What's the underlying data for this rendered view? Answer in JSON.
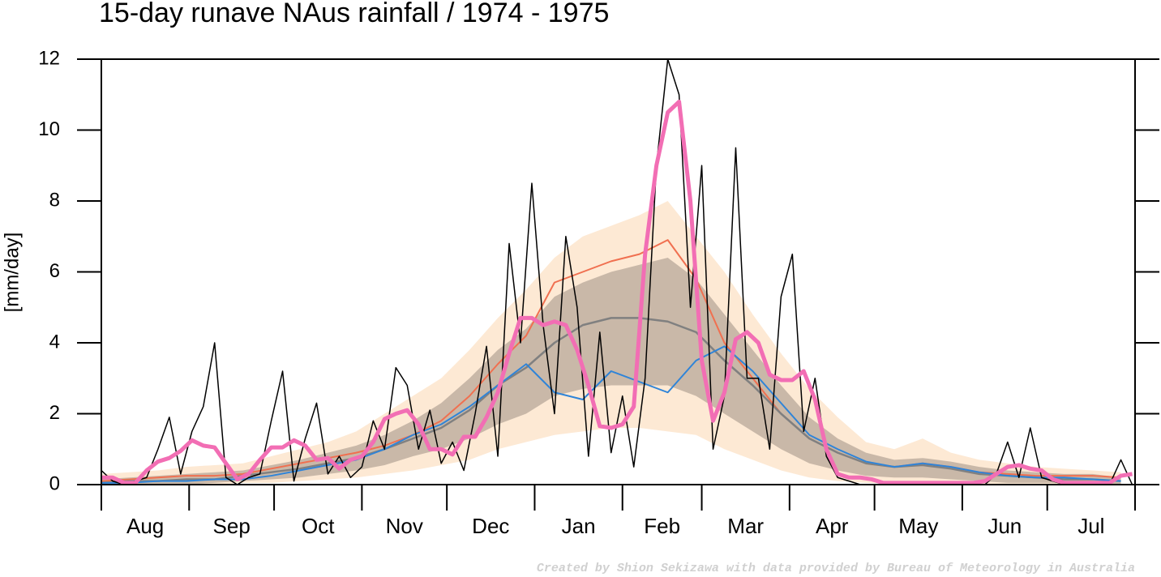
{
  "chart_data": {
    "type": "line",
    "title": "15-day runave NAus rainfall  /  1974 - 1975",
    "ylabel": "[mm/day]",
    "credit": "Created by Shion Sekizawa with data provided by Bureau of Meteorology in Australia",
    "categories": [
      "Aug",
      "Sep",
      "Oct",
      "Nov",
      "Dec",
      "Jan",
      "Feb",
      "Mar",
      "Apr",
      "May",
      "Jun",
      "Jul"
    ],
    "xlim": [
      0,
      365
    ],
    "xticks": [
      0,
      31,
      61,
      92,
      122,
      153,
      184,
      212,
      243,
      273,
      304,
      334,
      365
    ],
    "ylim": [
      0,
      12
    ],
    "yticks": [
      0,
      2,
      4,
      6,
      8,
      10,
      12
    ],
    "bands": [
      {
        "color": "#fde9d4",
        "x": [
          0,
          10,
          20,
          30,
          40,
          50,
          60,
          70,
          80,
          90,
          100,
          110,
          120,
          130,
          140,
          150,
          160,
          170,
          180,
          190,
          200,
          210,
          220,
          230,
          240,
          250,
          260,
          270,
          280,
          290,
          300,
          310,
          320,
          330,
          340,
          350,
          360
        ],
        "lower": [
          0,
          0,
          0,
          0,
          0,
          0.05,
          0.05,
          0.1,
          0.15,
          0.2,
          0.3,
          0.4,
          0.55,
          0.7,
          1.0,
          1.2,
          1.4,
          1.5,
          1.6,
          1.6,
          1.5,
          1.4,
          1.0,
          0.7,
          0.4,
          0.2,
          0.1,
          0.05,
          0.03,
          0.03,
          0.02,
          0.02,
          0.02,
          0,
          0,
          0,
          0
        ],
        "upper": [
          0.3,
          0.35,
          0.4,
          0.5,
          0.55,
          0.6,
          0.8,
          1.0,
          1.2,
          1.5,
          2.0,
          2.5,
          3.0,
          3.8,
          4.7,
          5.5,
          6.4,
          7.0,
          7.3,
          7.6,
          8.0,
          7.0,
          6.0,
          4.8,
          3.7,
          2.7,
          1.9,
          1.2,
          1.0,
          1.3,
          0.9,
          0.7,
          0.6,
          0.5,
          0.45,
          0.4,
          0.35
        ]
      },
      {
        "color": "#c9b8a8",
        "x": [
          0,
          10,
          20,
          30,
          40,
          50,
          60,
          70,
          80,
          90,
          100,
          110,
          120,
          130,
          140,
          150,
          160,
          170,
          180,
          190,
          200,
          210,
          220,
          230,
          240,
          250,
          260,
          270,
          280,
          290,
          300,
          310,
          320,
          330,
          340,
          350,
          360
        ],
        "lower": [
          0,
          0,
          0,
          0,
          0.05,
          0.1,
          0.15,
          0.2,
          0.3,
          0.4,
          0.55,
          0.8,
          1.0,
          1.3,
          1.7,
          2.0,
          2.5,
          2.7,
          2.8,
          2.8,
          2.8,
          2.5,
          2.0,
          1.5,
          1.0,
          0.6,
          0.4,
          0.25,
          0.2,
          0.2,
          0.15,
          0.1,
          0.05,
          0.05,
          0.05,
          0,
          0
        ],
        "upper": [
          0.15,
          0.2,
          0.25,
          0.3,
          0.35,
          0.4,
          0.55,
          0.7,
          0.9,
          1.1,
          1.4,
          1.8,
          2.3,
          3.0,
          3.8,
          4.4,
          5.3,
          5.7,
          6.0,
          6.2,
          6.4,
          5.8,
          4.8,
          3.8,
          2.8,
          1.9,
          1.3,
          0.9,
          0.7,
          0.75,
          0.65,
          0.5,
          0.4,
          0.35,
          0.3,
          0.3,
          0.2
        ]
      }
    ],
    "series": [
      {
        "color": "#f07050",
        "width": 2,
        "x": [
          0,
          10,
          20,
          30,
          40,
          50,
          60,
          70,
          80,
          90,
          100,
          110,
          120,
          130,
          140,
          150,
          160,
          170,
          180,
          190,
          200,
          210,
          220,
          230,
          240,
          250,
          260,
          270,
          280,
          290,
          300,
          310,
          320,
          330,
          340,
          350,
          360
        ],
        "values": [
          0.1,
          0.15,
          0.2,
          0.25,
          0.25,
          0.3,
          0.45,
          0.6,
          0.75,
          0.9,
          1.1,
          1.4,
          1.8,
          2.5,
          3.4,
          4.2,
          5.7,
          6.0,
          6.3,
          6.5,
          6.9,
          5.8,
          4.0,
          3.0,
          2.0,
          1.3,
          0.9,
          0.6,
          0.5,
          0.6,
          0.5,
          0.35,
          0.3,
          0.25,
          0.25,
          0.25,
          0.2
        ]
      },
      {
        "color": "#808080",
        "width": 2.5,
        "x": [
          0,
          10,
          20,
          30,
          40,
          50,
          60,
          70,
          80,
          90,
          100,
          110,
          120,
          130,
          140,
          150,
          160,
          170,
          180,
          190,
          200,
          210,
          220,
          230,
          240,
          250,
          260,
          270,
          280,
          290,
          300,
          310,
          320,
          330,
          340,
          350,
          360
        ],
        "values": [
          0.05,
          0.1,
          0.1,
          0.15,
          0.15,
          0.25,
          0.35,
          0.45,
          0.6,
          0.75,
          1.0,
          1.3,
          1.6,
          2.1,
          2.8,
          3.3,
          4.0,
          4.5,
          4.7,
          4.7,
          4.6,
          4.3,
          3.5,
          2.8,
          2.0,
          1.3,
          0.9,
          0.6,
          0.5,
          0.55,
          0.45,
          0.3,
          0.25,
          0.2,
          0.15,
          0.15,
          0.1
        ]
      },
      {
        "color": "#2f84d8",
        "width": 2,
        "x": [
          0,
          10,
          20,
          30,
          40,
          50,
          60,
          70,
          80,
          90,
          100,
          110,
          120,
          130,
          140,
          150,
          160,
          170,
          180,
          190,
          200,
          210,
          220,
          230,
          240,
          250,
          260,
          270,
          280,
          290,
          300,
          310,
          320,
          330,
          340,
          350,
          360
        ],
        "values": [
          0.05,
          0.05,
          0.1,
          0.1,
          0.15,
          0.15,
          0.25,
          0.4,
          0.55,
          0.7,
          1.0,
          1.4,
          1.7,
          2.2,
          2.8,
          3.4,
          2.6,
          2.4,
          3.2,
          2.9,
          2.6,
          3.5,
          3.9,
          3.2,
          2.3,
          1.4,
          1.0,
          0.65,
          0.5,
          0.6,
          0.5,
          0.35,
          0.25,
          0.2,
          0.2,
          0.15,
          0.1
        ]
      },
      {
        "color": "#000000",
        "width": 1.5,
        "x": [
          0,
          4,
          8,
          12,
          16,
          20,
          24,
          28,
          32,
          36,
          40,
          44,
          48,
          52,
          56,
          60,
          64,
          68,
          72,
          76,
          80,
          84,
          88,
          92,
          96,
          100,
          104,
          108,
          112,
          116,
          120,
          124,
          128,
          132,
          136,
          140,
          144,
          148,
          152,
          156,
          160,
          164,
          168,
          172,
          176,
          180,
          184,
          188,
          192,
          196,
          200,
          204,
          208,
          212,
          216,
          220,
          224,
          228,
          232,
          236,
          240,
          244,
          248,
          252,
          256,
          260,
          264,
          268,
          272,
          276,
          280,
          284,
          288,
          292,
          296,
          300,
          304,
          308,
          312,
          316,
          320,
          324,
          328,
          332,
          336,
          340,
          344,
          348,
          352,
          356,
          360,
          364
        ],
        "values": [
          0.4,
          0.1,
          0,
          0.1,
          0.2,
          1.0,
          1.9,
          0.3,
          1.5,
          2.2,
          4.0,
          0.2,
          0,
          0.2,
          0.3,
          1.8,
          3.2,
          0.1,
          1.3,
          2.3,
          0.3,
          0.8,
          0.2,
          0.5,
          1.8,
          1.0,
          3.3,
          2.8,
          1.0,
          2.1,
          0.6,
          1.2,
          0.4,
          2.0,
          3.9,
          0.8,
          6.8,
          4.0,
          8.5,
          4.5,
          2.0,
          7.0,
          5.0,
          0.8,
          4.3,
          0.9,
          2.5,
          0.5,
          3.0,
          9.0,
          12,
          11,
          5.0,
          9.0,
          1.0,
          2.5,
          9.5,
          3.0,
          3.0,
          1.0,
          5.3,
          6.5,
          1.5,
          3.0,
          0.8,
          0.2,
          0.1,
          0,
          0,
          0,
          0,
          0,
          0,
          0,
          0,
          0,
          0,
          0,
          0,
          0.3,
          1.2,
          0.2,
          1.6,
          0.2,
          0.1,
          0,
          0,
          0,
          0,
          0,
          0.7,
          0
        ]
      },
      {
        "color": "#f26eb4",
        "width": 5,
        "x": [
          0,
          4,
          8,
          12,
          16,
          20,
          24,
          28,
          32,
          36,
          40,
          44,
          48,
          52,
          56,
          60,
          64,
          68,
          72,
          76,
          80,
          84,
          88,
          92,
          96,
          100,
          104,
          108,
          112,
          116,
          120,
          124,
          128,
          132,
          136,
          140,
          144,
          148,
          152,
          156,
          160,
          164,
          168,
          172,
          176,
          180,
          184,
          188,
          192,
          196,
          200,
          204,
          208,
          212,
          216,
          220,
          224,
          228,
          232,
          236,
          240,
          244,
          248,
          252,
          256,
          260,
          264,
          268,
          272,
          276,
          280,
          284,
          288,
          292,
          296,
          300,
          304,
          308,
          312,
          316,
          320,
          324,
          328,
          332,
          336,
          340,
          344,
          348,
          352,
          356,
          360,
          364
        ],
        "values": [
          0.2,
          0.2,
          0.05,
          0.05,
          0.4,
          0.65,
          0.75,
          0.95,
          1.25,
          1.1,
          1.05,
          0.6,
          0.15,
          0.3,
          0.7,
          1.05,
          1.05,
          1.25,
          1.1,
          0.7,
          0.75,
          0.45,
          0.7,
          0.8,
          1.2,
          1.85,
          2.0,
          2.1,
          1.7,
          1.0,
          1.0,
          0.85,
          1.35,
          1.35,
          1.9,
          2.6,
          3.7,
          4.7,
          4.7,
          4.5,
          4.6,
          4.5,
          3.8,
          2.8,
          1.65,
          1.6,
          1.7,
          2.2,
          6.5,
          9.0,
          10.5,
          10.8,
          8.0,
          3.5,
          1.8,
          2.6,
          4.1,
          4.3,
          4.0,
          3.1,
          2.95,
          2.95,
          3.2,
          2.4,
          1.0,
          0.3,
          0.2,
          0.2,
          0.15,
          0.05,
          0.05,
          0.05,
          0.05,
          0.05,
          0.05,
          0.05,
          0.05,
          0.05,
          0.1,
          0.3,
          0.5,
          0.55,
          0.45,
          0.4,
          0.15,
          0.05,
          0.05,
          0.05,
          0.05,
          0.05,
          0.25,
          0.3
        ]
      }
    ]
  }
}
